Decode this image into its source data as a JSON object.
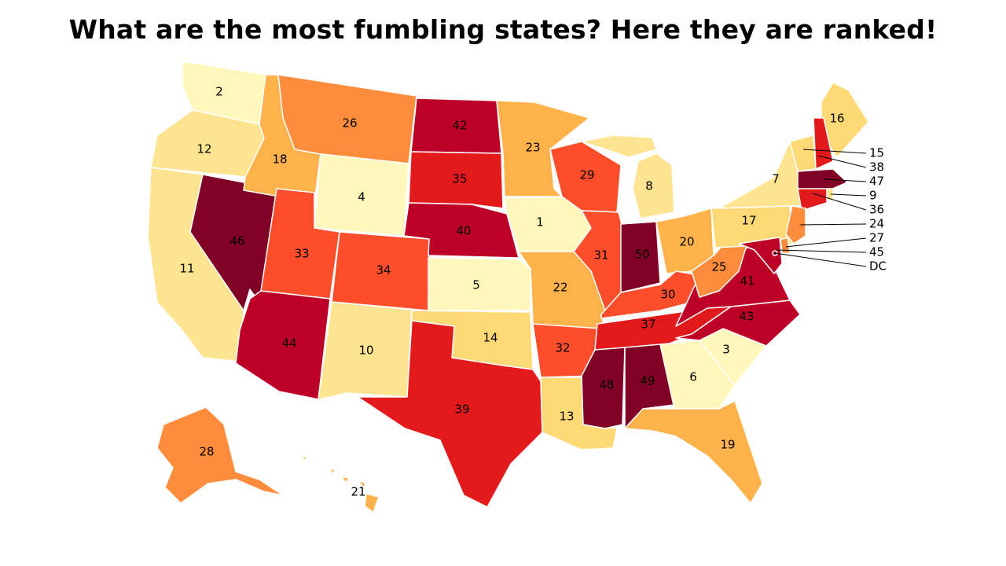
{
  "title": "What are the most fumbling states? Here they are ranked!",
  "color_scale": [
    "#fff7bc",
    "#fee391",
    "#fed976",
    "#feb24c",
    "#fd8d3c",
    "#fc4e2a",
    "#e31a1c",
    "#bd0026",
    "#800026"
  ],
  "states": {
    "WA": {
      "rank": "2"
    },
    "OR": {
      "rank": "12"
    },
    "CA": {
      "rank": "11"
    },
    "NV": {
      "rank": "46"
    },
    "ID": {
      "rank": "18"
    },
    "MT": {
      "rank": "26"
    },
    "WY": {
      "rank": "4"
    },
    "UT": {
      "rank": "33"
    },
    "AZ": {
      "rank": "44"
    },
    "CO": {
      "rank": "34"
    },
    "NM": {
      "rank": "10"
    },
    "ND": {
      "rank": "42"
    },
    "SD": {
      "rank": "35"
    },
    "NE": {
      "rank": "40"
    },
    "KS": {
      "rank": "5"
    },
    "OK": {
      "rank": "14"
    },
    "TX": {
      "rank": "39"
    },
    "MN": {
      "rank": "23"
    },
    "IA": {
      "rank": "1"
    },
    "MO": {
      "rank": "22"
    },
    "AR": {
      "rank": "32"
    },
    "LA": {
      "rank": "13"
    },
    "WI": {
      "rank": "29"
    },
    "IL": {
      "rank": "31"
    },
    "MI": {
      "rank": "8"
    },
    "IN": {
      "rank": "50"
    },
    "OH": {
      "rank": "20"
    },
    "KY": {
      "rank": "30"
    },
    "TN": {
      "rank": "37"
    },
    "MS": {
      "rank": "48"
    },
    "AL": {
      "rank": "49"
    },
    "GA": {
      "rank": "6"
    },
    "FL": {
      "rank": "19"
    },
    "SC": {
      "rank": "3"
    },
    "NC": {
      "rank": "43"
    },
    "VA": {
      "rank": "41"
    },
    "WV": {
      "rank": "25"
    },
    "PA": {
      "rank": "17"
    },
    "NY": {
      "rank": "7"
    },
    "ME": {
      "rank": "16"
    },
    "VT": {
      "rank": "15"
    },
    "NH": {
      "rank": "38"
    },
    "MA": {
      "rank": "47"
    },
    "RI": {
      "rank": "9"
    },
    "CT": {
      "rank": "36"
    },
    "NJ": {
      "rank": "24"
    },
    "DE": {
      "rank": "27"
    },
    "MD": {
      "rank": "45"
    },
    "DC": {
      "rank": "DC"
    },
    "AK": {
      "rank": "28"
    },
    "HI": {
      "rank": "21"
    }
  },
  "callouts": [
    "15",
    "38",
    "47",
    "9",
    "36",
    "24",
    "27",
    "45",
    "DC"
  ]
}
